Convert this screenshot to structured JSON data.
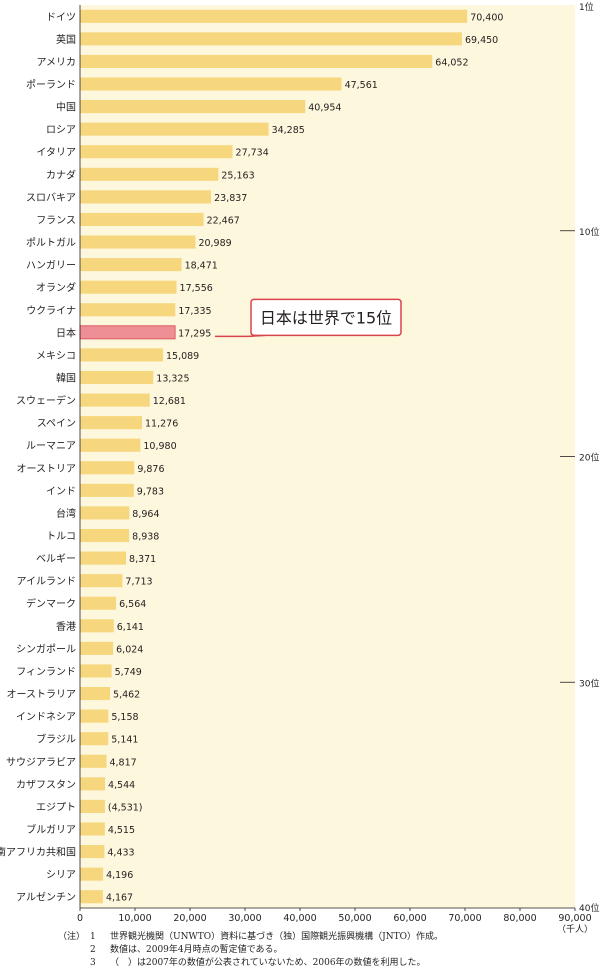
{
  "chart_data": {
    "type": "bar",
    "orientation": "horizontal",
    "categories": [
      "ドイツ",
      "英国",
      "アメリカ",
      "ポーランド",
      "中国",
      "ロシア",
      "イタリア",
      "カナダ",
      "スロバキア",
      "フランス",
      "ポルトガル",
      "ハンガリー",
      "オランダ",
      "ウクライナ",
      "日本",
      "メキシコ",
      "韓国",
      "スウェーデン",
      "スペイン",
      "ルーマニア",
      "オーストリア",
      "インド",
      "台湾",
      "トルコ",
      "ベルギー",
      "アイルランド",
      "デンマーク",
      "香港",
      "シンガポール",
      "フィンランド",
      "オーストラリア",
      "インドネシア",
      "ブラジル",
      "サウジアラビア",
      "カザフスタン",
      "エジプト",
      "ブルガリア",
      "南アフリカ共和国",
      "シリア",
      "アルゼンチン"
    ],
    "values": [
      70400,
      69450,
      64052,
      47561,
      40954,
      34285,
      27734,
      25163,
      23837,
      22467,
      20989,
      18471,
      17556,
      17335,
      17295,
      15089,
      13325,
      12681,
      11276,
      10980,
      9876,
      9783,
      8964,
      8938,
      8371,
      7713,
      6564,
      6141,
      6024,
      5749,
      5462,
      5158,
      5141,
      4817,
      4544,
      4531,
      4515,
      4433,
      4196,
      4167
    ],
    "value_labels": [
      "70,400",
      "69,450",
      "64,052",
      "47,561",
      "40,954",
      "34,285",
      "27,734",
      "25,163",
      "23,837",
      "22,467",
      "20,989",
      "18,471",
      "17,556",
      "17,335",
      "17,295",
      "15,089",
      "13,325",
      "12,681",
      "11,276",
      "10,980",
      "9,876",
      "9,783",
      "8,964",
      "8,938",
      "8,371",
      "7,713",
      "6,564",
      "6,141",
      "6,024",
      "5,749",
      "5,462",
      "5,158",
      "5,141",
      "4,817",
      "4,544",
      "(4,531)",
      "4,515",
      "4,433",
      "4,196",
      "4,167"
    ],
    "highlight_category": "日本",
    "xlim": [
      0,
      90000
    ],
    "x_ticks": [
      0,
      10000,
      20000,
      30000,
      40000,
      50000,
      60000,
      70000,
      80000,
      90000
    ],
    "x_tick_labels": [
      "0",
      "10,000",
      "20,000",
      "30,000",
      "40,000",
      "50,000",
      "60,000",
      "70,000",
      "80,000",
      "90,000"
    ],
    "x_unit": "（千人）",
    "rank_labels": [
      {
        "after_rank": 0,
        "label": "1位"
      },
      {
        "after_rank": 10,
        "label": "10位"
      },
      {
        "after_rank": 20,
        "label": "20位"
      },
      {
        "after_rank": 30,
        "label": "30位"
      },
      {
        "after_rank": 40,
        "label": "40位"
      }
    ],
    "callout": "日本は世界で15位",
    "grid": false,
    "colors": {
      "bar": "#f6d77e",
      "bar_highlight": "#ee8f95",
      "highlight_outline": "#d9434c",
      "background": "#fdf7dd",
      "divider": "#231f20",
      "callout_border": "#d9434c"
    }
  },
  "notes": {
    "head": "（注）",
    "items": [
      {
        "num": "1",
        "text": "世界観光機関（UNWTO）資料に基づき（独）国際観光振興機構（JNTO）作成。"
      },
      {
        "num": "2",
        "text": "数値は、2009年4月時点の暫定値である。"
      },
      {
        "num": "3",
        "text": "（　）は2007年の数値が公表されていないため、2006年の数値を利用した。"
      }
    ]
  }
}
